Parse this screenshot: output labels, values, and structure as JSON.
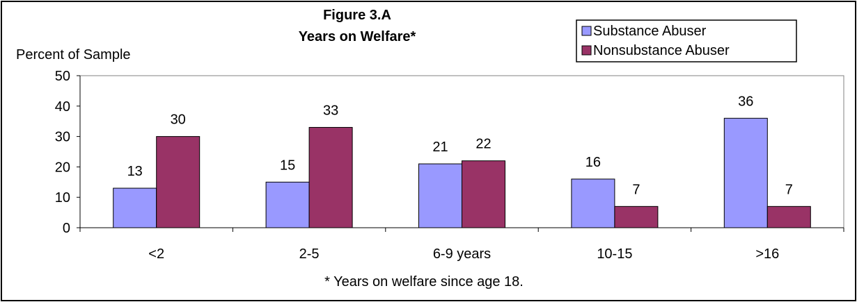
{
  "chart_data": {
    "type": "bar",
    "title": "Figure 3.A",
    "subtitle": "Years on Welfare*",
    "ylabel": "Percent of Sample",
    "xlabel": "",
    "footnote": "* Years on welfare since age 18.",
    "categories": [
      "<2",
      "2-5",
      "6-9 years",
      "10-15",
      ">16"
    ],
    "series": [
      {
        "name": "Substance Abuser",
        "values": [
          13,
          15,
          21,
          16,
          36
        ],
        "color": "#9999ff"
      },
      {
        "name": "Nonsubstance Abuser",
        "values": [
          30,
          33,
          22,
          7,
          7
        ],
        "color": "#993366"
      }
    ],
    "ylim": [
      0,
      50
    ],
    "yticks": [
      0,
      10,
      20,
      30,
      40,
      50
    ],
    "legend_position": "top-right",
    "grid": false,
    "data_labels": true
  }
}
